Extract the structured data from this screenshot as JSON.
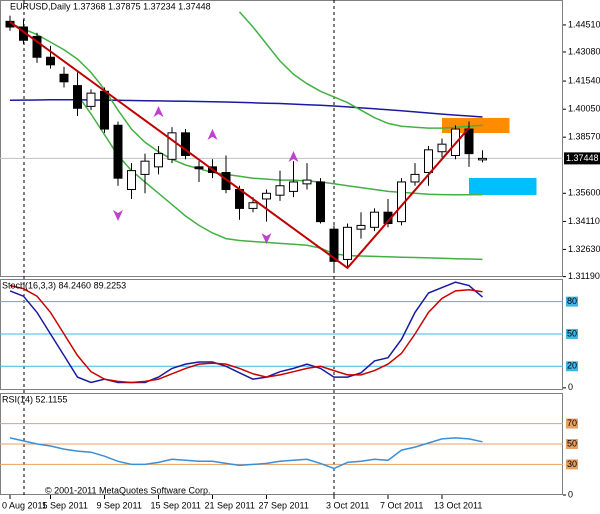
{
  "chart_data": [
    {
      "type": "candlestick",
      "title": "EURUSD,Daily 1.37368 1.37875 1.37234 1.37448",
      "categories": [
        "0 Aug 2011",
        null,
        null,
        "5 Sep 2011",
        null,
        null,
        null,
        "9 Sep 2011",
        null,
        null,
        null,
        "15 Sep 2011",
        null,
        null,
        null,
        "21 Sep 2011",
        null,
        null,
        null,
        "27 Sep 2011",
        null,
        null,
        null,
        null,
        "3 Oct 2011",
        null,
        null,
        null,
        "7 Oct 2011",
        null,
        null,
        null,
        "13 Oct 2011",
        null,
        null,
        null
      ],
      "open": [
        1.447,
        1.444,
        1.439,
        1.428,
        1.419,
        1.413,
        1.402,
        1.41,
        1.392,
        1.358,
        1.366,
        1.37,
        1.374,
        1.388,
        1.37,
        1.37,
        1.367,
        1.358,
        1.348,
        1.353,
        1.355,
        1.357,
        1.361,
        1.362,
        1.337,
        1.321,
        1.337,
        1.338,
        1.346,
        1.341,
        1.362,
        1.367,
        1.378,
        1.376,
        1.39,
        1.37368
      ],
      "high": [
        1.45,
        1.448,
        1.441,
        1.434,
        1.423,
        1.42,
        1.411,
        1.412,
        1.394,
        1.372,
        1.377,
        1.381,
        1.391,
        1.39,
        1.373,
        1.374,
        1.376,
        1.36,
        1.354,
        1.358,
        1.368,
        1.373,
        1.372,
        1.364,
        1.339,
        1.34,
        1.346,
        1.348,
        1.353,
        1.364,
        1.372,
        1.381,
        1.385,
        1.392,
        1.394,
        1.37875
      ],
      "low": [
        1.442,
        1.435,
        1.425,
        1.422,
        1.412,
        1.397,
        1.4,
        1.388,
        1.36,
        1.353,
        1.356,
        1.366,
        1.372,
        1.374,
        1.362,
        1.364,
        1.356,
        1.342,
        1.346,
        1.341,
        1.352,
        1.354,
        1.358,
        1.34,
        1.315,
        1.317,
        1.332,
        1.336,
        1.338,
        1.339,
        1.36,
        1.36,
        1.375,
        1.374,
        1.37,
        1.37234
      ],
      "close": [
        1.444,
        1.437,
        1.428,
        1.424,
        1.415,
        1.401,
        1.409,
        1.39,
        1.364,
        1.368,
        1.373,
        1.377,
        1.388,
        1.376,
        1.369,
        1.367,
        1.358,
        1.348,
        1.351,
        1.356,
        1.36,
        1.362,
        1.363,
        1.341,
        1.32,
        1.338,
        1.339,
        1.346,
        1.34,
        1.362,
        1.366,
        1.379,
        1.382,
        1.39,
        1.377,
        1.37448
      ],
      "up_color": "#ffffff",
      "down_color": "#000000",
      "ylim": [
        1.3117,
        1.4583
      ],
      "yticks": [
        {
          "value": 1.4451,
          "label": "1.44510"
        },
        {
          "value": 1.4308,
          "label": "1.43080"
        },
        {
          "value": 1.4154,
          "label": "1.41540"
        },
        {
          "value": 1.4005,
          "label": "1.40050"
        },
        {
          "value": 1.3857,
          "label": "1.38570"
        },
        {
          "value": 1.356,
          "label": "1.35600"
        },
        {
          "value": 1.3411,
          "label": "1.34110"
        },
        {
          "value": 1.3263,
          "label": "1.32630"
        },
        {
          "value": 1.3119,
          "label": "1.31190"
        }
      ],
      "current_price": 1.37448,
      "overlays": [
        {
          "color": "#1a1aa0",
          "values": [
            1.4052,
            1.4053,
            1.4054,
            1.4055,
            1.4055,
            1.4055,
            1.4054,
            1.4053,
            1.4052,
            1.4051,
            1.405,
            1.4049,
            1.4048,
            1.4047,
            1.4046,
            1.4045,
            1.4043,
            1.4041,
            1.4039,
            1.4037,
            1.4035,
            1.4032,
            1.4029,
            1.4026,
            1.4022,
            1.4017,
            1.4012,
            1.4007,
            1.4002,
            1.3997,
            1.3991,
            1.3985,
            1.3979,
            1.3974,
            1.3969,
            1.3964
          ]
        },
        {
          "color": "#44b044",
          "values": [
            null,
            null,
            null,
            null,
            null,
            null,
            null,
            null,
            null,
            null,
            null,
            null,
            null,
            null,
            null,
            null,
            null,
            1.452,
            1.444,
            1.435,
            1.426,
            1.419,
            1.414,
            1.41,
            1.407,
            1.404,
            1.4,
            1.396,
            1.393,
            1.3915,
            1.391,
            1.3905,
            1.3905,
            1.391,
            1.3915,
            1.392
          ]
        },
        {
          "color": "#44b044",
          "values": [
            1.446,
            1.443,
            1.44,
            1.436,
            1.432,
            1.427,
            1.42,
            1.411,
            1.4,
            1.39,
            1.383,
            1.378,
            1.374,
            1.371,
            1.369,
            1.367,
            1.366,
            1.365,
            1.364,
            1.3635,
            1.363,
            1.363,
            1.3625,
            1.362,
            1.361,
            1.36,
            1.359,
            1.358,
            1.357,
            1.3565,
            1.356,
            1.3555,
            1.3553,
            1.3552,
            1.3552,
            1.3553
          ]
        },
        {
          "color": "#44b044",
          "values": [
            null,
            null,
            null,
            null,
            null,
            1.408,
            1.398,
            1.387,
            1.376,
            1.368,
            1.362,
            1.356,
            1.35,
            1.344,
            1.339,
            1.335,
            1.332,
            1.331,
            1.3305,
            1.33,
            1.3295,
            1.329,
            1.3285,
            1.327,
            1.324,
            1.323,
            1.3228,
            1.3226,
            1.3224,
            1.3222,
            1.322,
            1.3218,
            1.3216,
            1.3214,
            1.3212,
            1.321
          ]
        }
      ],
      "zigzag": {
        "color": "#c00000",
        "indices": [
          0,
          25,
          34
        ],
        "values": [
          1.4467,
          1.3165,
          1.3906
        ]
      },
      "fractals": {
        "color": "#c040d0",
        "up_indices": [
          11,
          15,
          21
        ],
        "up_values": [
          1.399,
          1.3869,
          1.3752
        ],
        "down_indices": [
          8,
          19
        ],
        "down_values": [
          1.3445,
          1.3323
        ]
      },
      "zones": [
        {
          "color": "#ff8c00",
          "x": [
            32,
            37
          ],
          "y": [
            1.3879,
            1.3959
          ]
        },
        {
          "color": "#00bfff",
          "x": [
            34,
            39
          ],
          "y": [
            1.3551,
            1.3641
          ]
        }
      ]
    },
    {
      "type": "line",
      "title": "Stoch(16,3,3) 84.2460 89.2253",
      "series": [
        {
          "color": "#1a1aa0",
          "values": [
            90,
            85,
            70,
            50,
            30,
            10,
            5,
            8,
            5,
            5,
            5,
            10,
            18,
            22,
            24,
            24,
            20,
            14,
            8,
            10,
            15,
            18,
            22,
            18,
            10,
            10,
            14,
            25,
            28,
            45,
            70,
            88,
            93,
            98,
            95,
            84.246
          ]
        },
        {
          "color": "#cc0000",
          "values": [
            95,
            92,
            85,
            70,
            50,
            30,
            15,
            8,
            6,
            5,
            6,
            8,
            13,
            18,
            22,
            23,
            22,
            18,
            13,
            10,
            12,
            15,
            18,
            20,
            16,
            12,
            12,
            16,
            22,
            32,
            50,
            70,
            83,
            90,
            91,
            89.2253
          ]
        }
      ],
      "ylim": [
        -2,
        101
      ],
      "yticks": [
        0
      ],
      "levels": [
        80,
        50,
        20
      ],
      "level_color": "#3db8e6"
    },
    {
      "type": "line",
      "title": "RSI(14) 52.1155",
      "series": [
        {
          "color": "#3a8fd6",
          "values": [
            56,
            53,
            50,
            48,
            45,
            43,
            42,
            38,
            33,
            30,
            30,
            32,
            35,
            34,
            33,
            33,
            31,
            29,
            30,
            31,
            33,
            34,
            35,
            31,
            26,
            32,
            33,
            35,
            34,
            44,
            47,
            51,
            55,
            56,
            55,
            52.1155
          ]
        }
      ],
      "ylim": [
        0,
        100
      ],
      "yticks": [
        0
      ],
      "levels": [
        70,
        50,
        30
      ],
      "level_color": "#e8a060"
    }
  ],
  "copyright": "© 2001-2011 MetaQuotes Software Corp."
}
